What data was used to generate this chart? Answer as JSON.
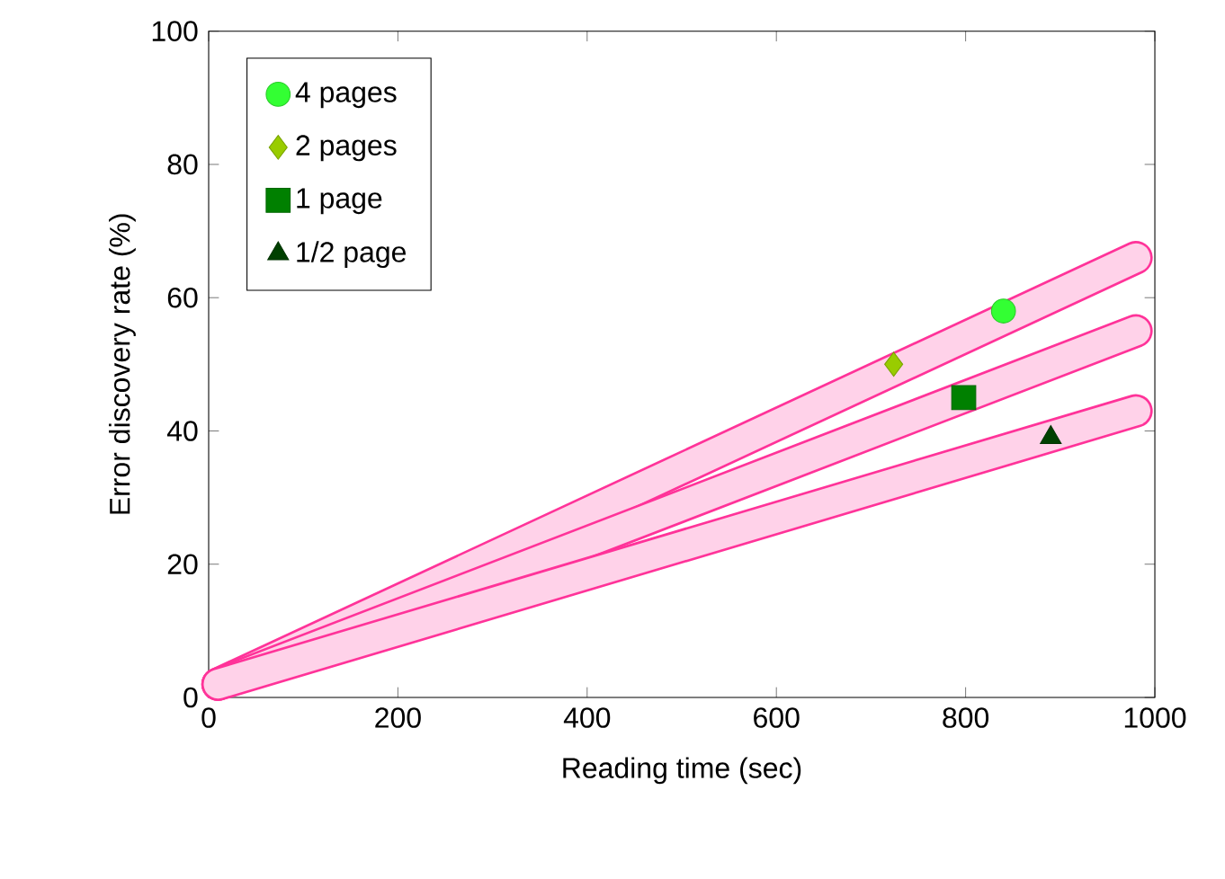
{
  "chart_data": {
    "type": "scatter",
    "xlabel": "Reading time (sec)",
    "ylabel": "Error discovery rate (%)",
    "xlim": [
      0,
      1000
    ],
    "ylim": [
      0,
      100
    ],
    "xticks": [
      0,
      200,
      400,
      600,
      800,
      1000
    ],
    "yticks": [
      0,
      20,
      40,
      60,
      80,
      100
    ],
    "legend": "top left",
    "series": [
      {
        "name": "4 pages",
        "color": "#33ff33",
        "marker": "circle",
        "x": [
          840
        ],
        "values": [
          58
        ]
      },
      {
        "name": "2 pages",
        "color": "#99cc00",
        "marker": "diamond",
        "x": [
          724
        ],
        "values": [
          50
        ]
      },
      {
        "name": "1 page",
        "color": "#008000",
        "marker": "square",
        "x": [
          798
        ],
        "values": [
          45
        ]
      },
      {
        "name": "1/2 page",
        "color": "#004000",
        "marker": "triangle",
        "x": [
          890
        ],
        "values": [
          39
        ]
      },
      {
        "type": "line",
        "color": "#ff3399",
        "x": [
          10,
          980
        ],
        "values": [
          2,
          66
        ]
      },
      {
        "type": "line",
        "color": "#ff3399",
        "x": [
          10,
          980
        ],
        "values": [
          2,
          55
        ]
      },
      {
        "type": "line",
        "color": "#ff3399",
        "x": [
          10,
          980
        ],
        "values": [
          2,
          43
        ]
      }
    ]
  }
}
